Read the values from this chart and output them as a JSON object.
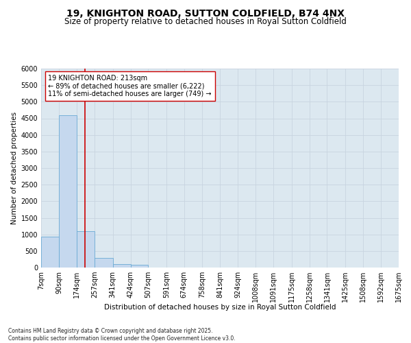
{
  "title1": "19, KNIGHTON ROAD, SUTTON COLDFIELD, B74 4NX",
  "title2": "Size of property relative to detached houses in Royal Sutton Coldfield",
  "xlabel": "Distribution of detached houses by size in Royal Sutton Coldfield",
  "ylabel": "Number of detached properties",
  "bin_edges": [
    7,
    90,
    174,
    257,
    341,
    424,
    507,
    591,
    674,
    758,
    841,
    924,
    1008,
    1091,
    1175,
    1258,
    1341,
    1425,
    1508,
    1592,
    1675
  ],
  "bar_heights": [
    930,
    4600,
    1100,
    300,
    100,
    80,
    0,
    0,
    0,
    0,
    0,
    0,
    0,
    0,
    0,
    0,
    0,
    0,
    0,
    0
  ],
  "bar_color": "#c5d8ee",
  "bar_edgecolor": "#6aaad4",
  "property_size": 213,
  "annotation_line1": "19 KNIGHTON ROAD: 213sqm",
  "annotation_line2": "← 89% of detached houses are smaller (6,222)",
  "annotation_line3": "11% of semi-detached houses are larger (749) →",
  "redline_color": "#cc0000",
  "annotation_box_edgecolor": "#cc0000",
  "annotation_box_facecolor": "#ffffff",
  "ylim": [
    0,
    6000
  ],
  "yticks": [
    0,
    500,
    1000,
    1500,
    2000,
    2500,
    3000,
    3500,
    4000,
    4500,
    5000,
    5500,
    6000
  ],
  "grid_color": "#c8d4e0",
  "bg_color": "#dce8f0",
  "fig_bg_color": "#ffffff",
  "footnote": "Contains HM Land Registry data © Crown copyright and database right 2025.\nContains public sector information licensed under the Open Government Licence v3.0.",
  "title1_fontsize": 10,
  "title2_fontsize": 8.5,
  "xlabel_fontsize": 7.5,
  "ylabel_fontsize": 7.5,
  "tick_fontsize": 7,
  "annotation_fontsize": 7,
  "footnote_fontsize": 5.5
}
